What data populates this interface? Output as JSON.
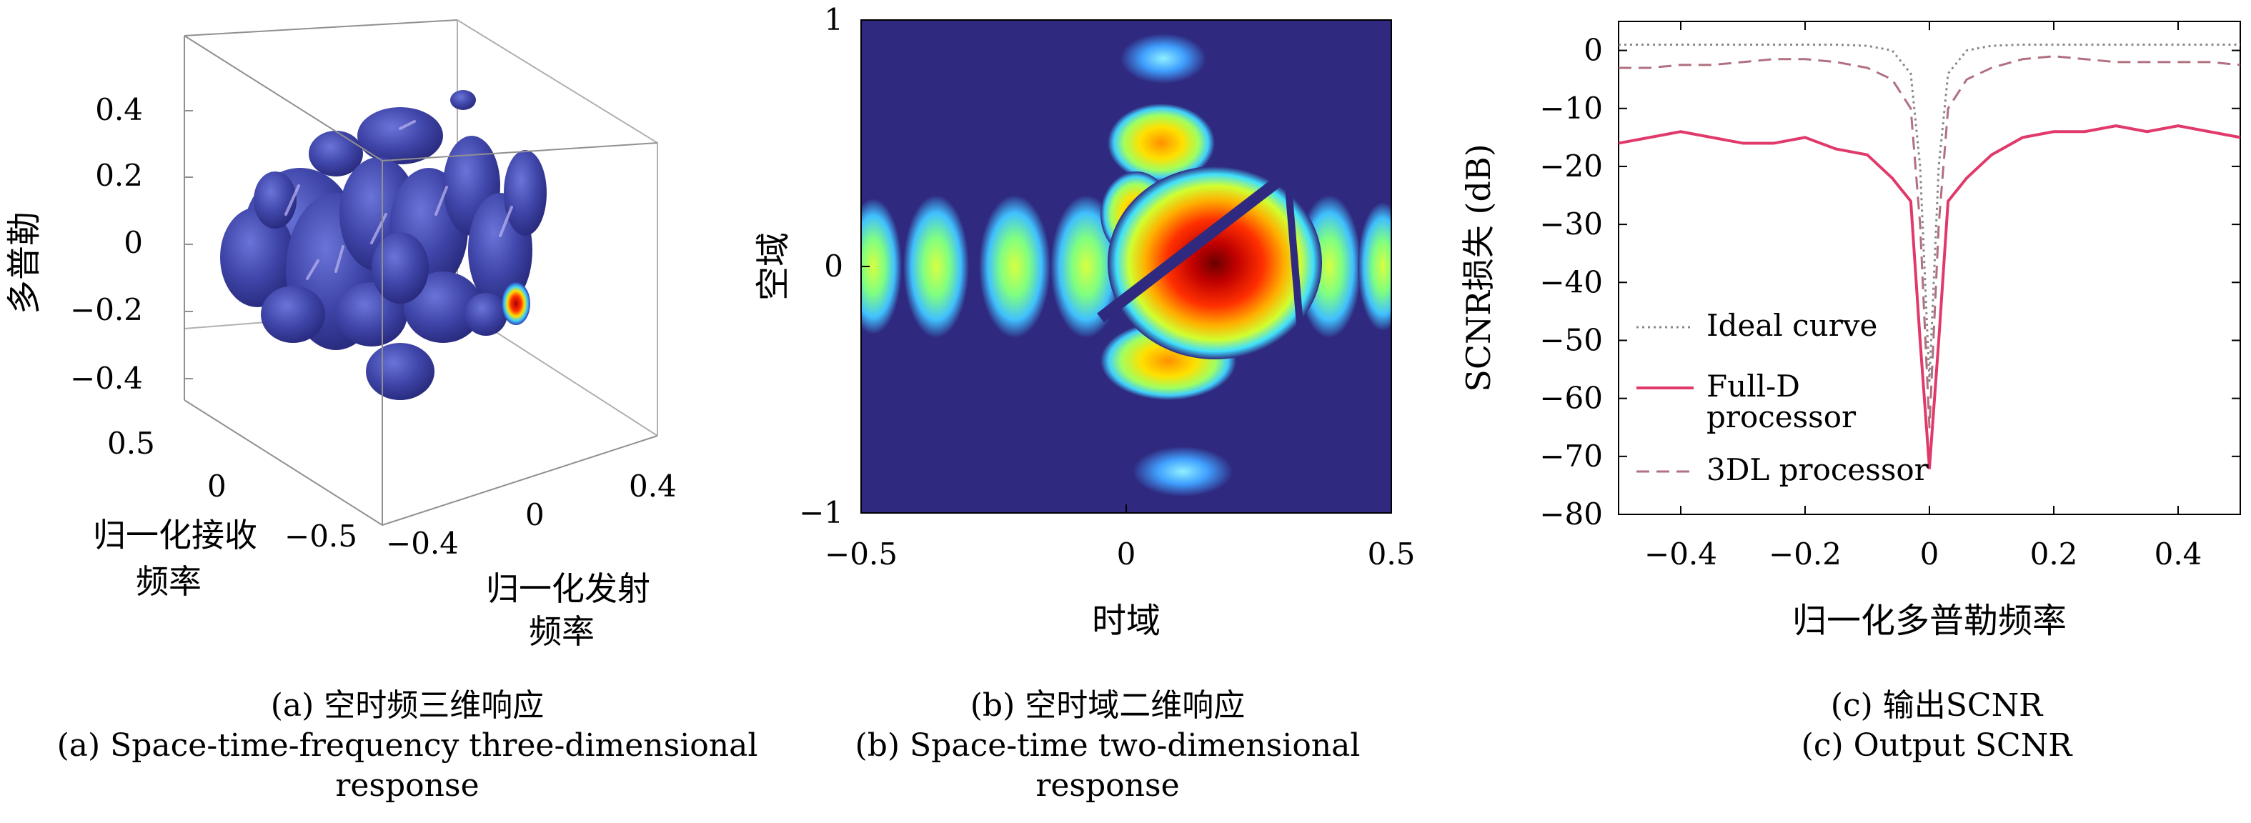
{
  "panel_a": {
    "zlabel": "多普勒",
    "recv_label_1": "归一化接收",
    "recv_label_2": "频率",
    "tx_label_1": "归一化发射",
    "tx_label_2": "频率",
    "z_ticks": [
      "0.4",
      "0.2",
      "0",
      "−0.2",
      "−0.4"
    ],
    "recv_ticks": [
      "0.5",
      "0",
      "−0.5"
    ],
    "tx_ticks": [
      "−0.4",
      "0",
      "0.4"
    ],
    "caption_cn": "(a) 空时频三维响应",
    "caption_en_1": "(a) Space-time-frequency three-dimensional",
    "caption_en_2": "response"
  },
  "panel_b": {
    "xlabel": "时域",
    "ylabel": "空域",
    "x_ticks": [
      "−0.5",
      "0",
      "0.5"
    ],
    "y_ticks": [
      "1",
      "0",
      "−1"
    ],
    "caption_cn": "(b) 空时域二维响应",
    "caption_en_1": "(b) Space-time two-dimensional",
    "caption_en_2": "response"
  },
  "panel_c": {
    "caption_cn": "(c) 输出SCNR",
    "caption_en": "(c) Output SCNR"
  },
  "colors": {
    "background_blue": "#2f2a80",
    "ideal": "#888888",
    "full_d": "#e0396a",
    "dl3": "#b07080"
  },
  "chart_data": [
    {
      "type": "scatter",
      "chart": "3d isosurface",
      "zlabel": "多普勒",
      "xlabel": "归一化发射频率",
      "ylabel": "归一化接收频率",
      "xlim": [
        -0.5,
        0.5
      ],
      "ylim": [
        -0.5,
        0.5
      ],
      "zlim": [
        -0.5,
        0.5
      ],
      "notes": "blue isosurface blobs clustered around center with one red/yellow peak near z=-0.15"
    },
    {
      "type": "heatmap",
      "xlabel": "时域",
      "ylabel": "空域",
      "xlim": [
        -0.5,
        0.5
      ],
      "ylim": [
        -1,
        1
      ],
      "peak": [
        0.17,
        0
      ],
      "colormap": "jet"
    },
    {
      "type": "line",
      "xlabel": "归一化多普勒频率",
      "ylabel": "SCNR损失 (dB)",
      "xlim": [
        -0.5,
        0.5
      ],
      "ylim": [
        -80,
        5
      ],
      "x_ticks": [
        "−0.4",
        "−0.2",
        "0",
        "0.2",
        "0.4"
      ],
      "y_ticks": [
        "0",
        "−10",
        "−20",
        "−30",
        "−40",
        "−50",
        "−60",
        "−70",
        "−80"
      ],
      "legend_position": "bottom-left",
      "x": [
        -0.5,
        -0.45,
        -0.4,
        -0.35,
        -0.3,
        -0.25,
        -0.2,
        -0.15,
        -0.1,
        -0.06,
        -0.03,
        -0.015,
        0,
        0.015,
        0.03,
        0.06,
        0.1,
        0.15,
        0.2,
        0.25,
        0.3,
        0.35,
        0.4,
        0.45,
        0.5
      ],
      "series": [
        {
          "name": "Ideal curve",
          "legend_lines": [
            "Ideal curve"
          ],
          "style": "dotted",
          "values": [
            1,
            1,
            1,
            1,
            1,
            1,
            1,
            1,
            0.8,
            0,
            -4,
            -20,
            -57,
            -20,
            -4,
            0,
            0.8,
            1,
            1,
            1,
            1,
            1,
            1,
            1,
            1
          ]
        },
        {
          "name": "Full-D processor",
          "legend_lines": [
            "Full-D",
            "processor"
          ],
          "style": "solid",
          "values": [
            -16,
            -15,
            -14,
            -15,
            -16,
            -16,
            -15,
            -17,
            -18,
            -22,
            -26,
            -50,
            -72,
            -50,
            -26,
            -22,
            -18,
            -15,
            -14,
            -14,
            -13,
            -14,
            -13,
            -14,
            -15
          ]
        },
        {
          "name": "3DL processor",
          "legend_lines": [
            "3DL processor"
          ],
          "style": "dashed",
          "values": [
            -3,
            -3,
            -2.5,
            -2.5,
            -2,
            -1.5,
            -1.5,
            -2,
            -3,
            -5,
            -10,
            -30,
            -65,
            -30,
            -10,
            -5,
            -3,
            -1.5,
            -1,
            -1.5,
            -2,
            -2,
            -2,
            -2,
            -2.5
          ]
        }
      ]
    }
  ]
}
